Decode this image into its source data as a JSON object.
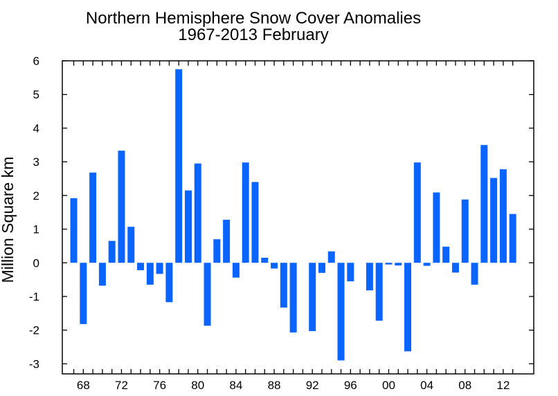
{
  "chart_data": {
    "type": "bar",
    "title": "Northern Hemisphere Snow Cover Anomalies",
    "subtitle": "1967-2013 February",
    "xlabel": "",
    "ylabel": "Million Square km",
    "ylim": [
      -3.3,
      6
    ],
    "xlim": [
      1965.8,
      2015.2
    ],
    "yticks": [
      -3,
      -2,
      -1,
      0,
      1,
      2,
      3,
      4,
      5,
      6
    ],
    "xticks": [
      {
        "year": 1968,
        "label": "68"
      },
      {
        "year": 1972,
        "label": "72"
      },
      {
        "year": 1976,
        "label": "76"
      },
      {
        "year": 1980,
        "label": "80"
      },
      {
        "year": 1984,
        "label": "84"
      },
      {
        "year": 1988,
        "label": "88"
      },
      {
        "year": 1992,
        "label": "92"
      },
      {
        "year": 1996,
        "label": "96"
      },
      {
        "year": 2000,
        "label": "00"
      },
      {
        "year": 2004,
        "label": "04"
      },
      {
        "year": 2008,
        "label": "08"
      },
      {
        "year": 2012,
        "label": "12"
      }
    ],
    "bar_color": "#0a64ff",
    "x": [
      1967,
      1968,
      1969,
      1970,
      1971,
      1972,
      1973,
      1974,
      1975,
      1976,
      1977,
      1978,
      1979,
      1980,
      1981,
      1982,
      1983,
      1984,
      1985,
      1986,
      1987,
      1988,
      1989,
      1990,
      1991,
      1992,
      1993,
      1994,
      1995,
      1996,
      1997,
      1998,
      1999,
      2000,
      2001,
      2002,
      2003,
      2004,
      2005,
      2006,
      2007,
      2008,
      2009,
      2010,
      2011,
      2012,
      2013
    ],
    "values": [
      1.92,
      -1.82,
      2.68,
      -0.68,
      0.65,
      3.33,
      1.07,
      -0.22,
      -0.65,
      -0.33,
      -1.17,
      5.75,
      2.15,
      2.95,
      -1.87,
      0.7,
      1.28,
      -0.44,
      2.98,
      2.4,
      0.15,
      -0.17,
      -1.33,
      -2.07,
      null,
      -2.03,
      -0.3,
      0.34,
      -2.9,
      -0.55,
      null,
      -0.82,
      -1.72,
      -0.05,
      -0.08,
      -2.63,
      2.98,
      -0.09,
      2.09,
      0.48,
      -0.29,
      1.88,
      -0.65,
      3.5,
      2.52,
      2.78,
      1.45
    ]
  }
}
